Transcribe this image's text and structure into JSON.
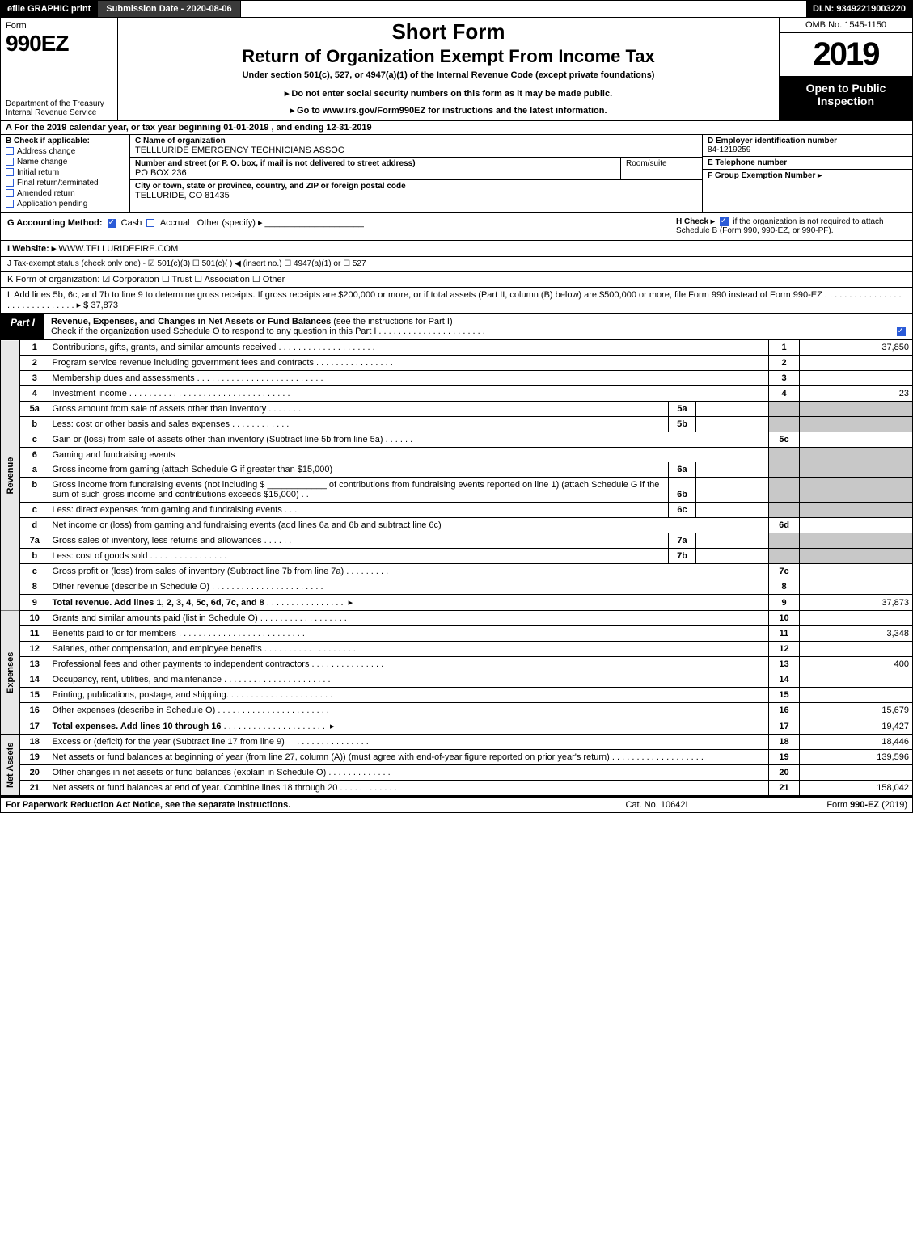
{
  "topbar": {
    "efile": "efile GRAPHIC",
    "print": "print",
    "subdate_label": "Submission Date - ",
    "subdate": "2020-08-06",
    "dln_label": "DLN: ",
    "dln": "93492219003220"
  },
  "header": {
    "form_label": "Form",
    "form_number": "990EZ",
    "dept1": "Department of the Treasury",
    "dept2": "Internal Revenue Service",
    "short": "Short Form",
    "return": "Return of Organization Exempt From Income Tax",
    "under": "Under section 501(c), 527, or 4947(a)(1) of the Internal Revenue Code (except private foundations)",
    "donot": "▸ Do not enter social security numbers on this form as it may be made public.",
    "goto_pre": "▸ Go to ",
    "goto_link": "www.irs.gov/Form990EZ",
    "goto_post": " for instructions and the latest information.",
    "omb": "OMB No. 1545-1150",
    "year": "2019",
    "open": "Open to Public Inspection"
  },
  "row_a": "A For the 2019 calendar year, or tax year beginning 01-01-2019 , and ending 12-31-2019",
  "col_b": {
    "hdr": "B  Check if applicable:",
    "items": [
      "Address change",
      "Name change",
      "Initial return",
      "Final return/terminated",
      "Amended return",
      "Application pending"
    ]
  },
  "col_c": {
    "name_label": "C Name of organization",
    "name": "TELLLURIDE EMERGENCY TECHNICIANS ASSOC",
    "addr_label": "Number and street (or P. O. box, if mail is not delivered to street address)",
    "addr": "PO BOX 236",
    "suite_label": "Room/suite",
    "city_label": "City or town, state or province, country, and ZIP or foreign postal code",
    "city": "TELLURIDE, CO  81435"
  },
  "col_def": {
    "d_label": "D Employer identification number",
    "d_val": "84-1219259",
    "e_label": "E Telephone number",
    "f_label": "F Group Exemption Number  ▸"
  },
  "row_g": {
    "g_label": "G Accounting Method:",
    "g_cash": "Cash",
    "g_accrual": "Accrual",
    "g_other": "Other (specify) ▸",
    "h_label": "H  Check ▸",
    "h_text": " if the organization is not required to attach Schedule B (Form 990, 990-EZ, or 990-PF)."
  },
  "row_i": {
    "label": "I Website: ▸",
    "val": "WWW.TELLURIDEFIRE.COM"
  },
  "row_j": "J Tax-exempt status (check only one) - ☑ 501(c)(3)  ☐ 501(c)(  ) ◀ (insert no.)  ☐ 4947(a)(1) or  ☐ 527",
  "row_k": "K Form of organization:  ☑ Corporation  ☐ Trust  ☐ Association  ☐ Other",
  "row_l": {
    "text": "L Add lines 5b, 6c, and 7b to line 9 to determine gross receipts. If gross receipts are $200,000 or more, or if total assets (Part II, column (B) below) are $500,000 or more, file Form 990 instead of Form 990-EZ . . . . . . . . . . . . . . . . . . . . . . . . . . . . . . ▸ $",
    "amount": "37,873"
  },
  "part1": {
    "tab": "Part I",
    "title": "Revenue, Expenses, and Changes in Net Assets or Fund Balances",
    "title_suffix": " (see the instructions for Part I)",
    "sub": "Check if the organization used Schedule O to respond to any question in this Part I . . . . . . . . . . . . . . . . . . . . . ."
  },
  "sections": {
    "revenue": "Revenue",
    "expenses": "Expenses",
    "netassets": "Net Assets"
  },
  "lines": {
    "l1": {
      "no": "1",
      "desc": "Contributions, gifts, grants, and similar amounts received",
      "num": "1",
      "amt": "37,850"
    },
    "l2": {
      "no": "2",
      "desc": "Program service revenue including government fees and contracts",
      "num": "2",
      "amt": ""
    },
    "l3": {
      "no": "3",
      "desc": "Membership dues and assessments",
      "num": "3",
      "amt": ""
    },
    "l4": {
      "no": "4",
      "desc": "Investment income",
      "num": "4",
      "amt": "23"
    },
    "l5a": {
      "no": "5a",
      "desc": "Gross amount from sale of assets other than inventory",
      "sub": "5a"
    },
    "l5b": {
      "no": "b",
      "desc": "Less: cost or other basis and sales expenses",
      "sub": "5b"
    },
    "l5c": {
      "no": "c",
      "desc": "Gain or (loss) from sale of assets other than inventory (Subtract line 5b from line 5a)",
      "num": "5c",
      "amt": ""
    },
    "l6": {
      "no": "6",
      "desc": "Gaming and fundraising events"
    },
    "l6a": {
      "no": "a",
      "desc": "Gross income from gaming (attach Schedule G if greater than $15,000)",
      "sub": "6a"
    },
    "l6b": {
      "no": "b",
      "desc": "Gross income from fundraising events (not including $ ____________ of contributions from fundraising events reported on line 1) (attach Schedule G if the sum of such gross income and contributions exceeds $15,000)",
      "sub": "6b"
    },
    "l6c": {
      "no": "c",
      "desc": "Less: direct expenses from gaming and fundraising events",
      "sub": "6c"
    },
    "l6d": {
      "no": "d",
      "desc": "Net income or (loss) from gaming and fundraising events (add lines 6a and 6b and subtract line 6c)",
      "num": "6d",
      "amt": ""
    },
    "l7a": {
      "no": "7a",
      "desc": "Gross sales of inventory, less returns and allowances",
      "sub": "7a"
    },
    "l7b": {
      "no": "b",
      "desc": "Less: cost of goods sold",
      "sub": "7b"
    },
    "l7c": {
      "no": "c",
      "desc": "Gross profit or (loss) from sales of inventory (Subtract line 7b from line 7a)",
      "num": "7c",
      "amt": ""
    },
    "l8": {
      "no": "8",
      "desc": "Other revenue (describe in Schedule O)",
      "num": "8",
      "amt": ""
    },
    "l9": {
      "no": "9",
      "desc": "Total revenue. Add lines 1, 2, 3, 4, 5c, 6d, 7c, and 8",
      "num": "9",
      "amt": "37,873",
      "arrow": true,
      "bold": true
    },
    "l10": {
      "no": "10",
      "desc": "Grants and similar amounts paid (list in Schedule O)",
      "num": "10",
      "amt": ""
    },
    "l11": {
      "no": "11",
      "desc": "Benefits paid to or for members",
      "num": "11",
      "amt": "3,348"
    },
    "l12": {
      "no": "12",
      "desc": "Salaries, other compensation, and employee benefits",
      "num": "12",
      "amt": ""
    },
    "l13": {
      "no": "13",
      "desc": "Professional fees and other payments to independent contractors",
      "num": "13",
      "amt": "400"
    },
    "l14": {
      "no": "14",
      "desc": "Occupancy, rent, utilities, and maintenance",
      "num": "14",
      "amt": ""
    },
    "l15": {
      "no": "15",
      "desc": "Printing, publications, postage, and shipping.",
      "num": "15",
      "amt": ""
    },
    "l16": {
      "no": "16",
      "desc": "Other expenses (describe in Schedule O)",
      "num": "16",
      "amt": "15,679"
    },
    "l17": {
      "no": "17",
      "desc": "Total expenses. Add lines 10 through 16",
      "num": "17",
      "amt": "19,427",
      "arrow": true,
      "bold": true
    },
    "l18": {
      "no": "18",
      "desc": "Excess or (deficit) for the year (Subtract line 17 from line 9)",
      "num": "18",
      "amt": "18,446"
    },
    "l19": {
      "no": "19",
      "desc": "Net assets or fund balances at beginning of year (from line 27, column (A)) (must agree with end-of-year figure reported on prior year's return)",
      "num": "19",
      "amt": "139,596"
    },
    "l20": {
      "no": "20",
      "desc": "Other changes in net assets or fund balances (explain in Schedule O)",
      "num": "20",
      "amt": ""
    },
    "l21": {
      "no": "21",
      "desc": "Net assets or fund balances at end of year. Combine lines 18 through 20",
      "num": "21",
      "amt": "158,042"
    }
  },
  "footer": {
    "left": "For Paperwork Reduction Act Notice, see the separate instructions.",
    "mid": "Cat. No. 10642I",
    "right_pre": "Form ",
    "right_form": "990-EZ",
    "right_post": " (2019)"
  }
}
